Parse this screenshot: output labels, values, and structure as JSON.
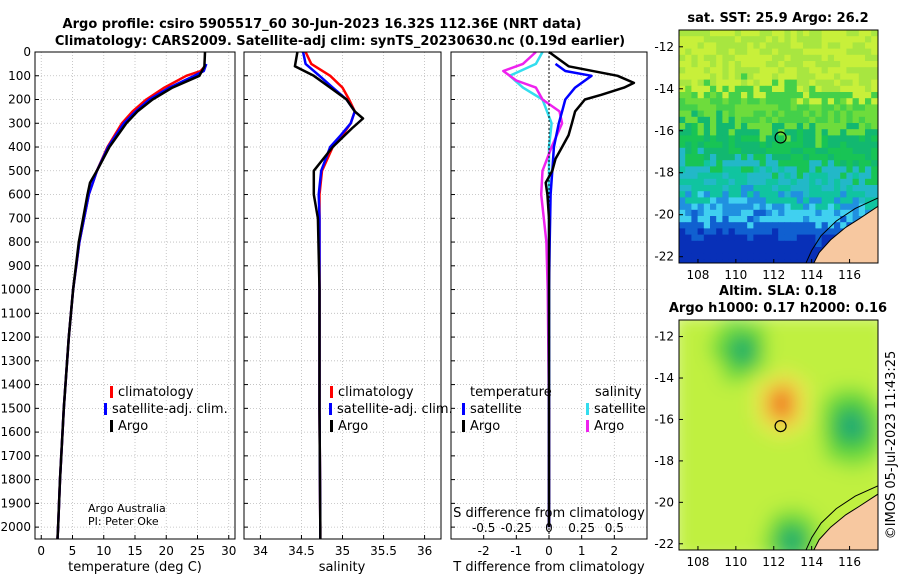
{
  "titles": {
    "line1": "Argo profile: csiro 5905517_60 30-Jun-2023 16.32S 112.36E (NRT data)",
    "line2": "Climatology: CARS2009. Satellite-adj clim: synTS_20230630.nc (0.19d earlier)",
    "sst": "sat. SST: 25.9 Argo: 26.2",
    "sla1": "Altim. SLA: 0.18",
    "sla2": "Argo h1000: 0.17 h2000: 0.16",
    "credit": "©IMOS 05-Jul-2023 11:43:25"
  },
  "colors": {
    "climatology": "#ff0000",
    "satellite": "#0000ff",
    "argo": "#000000",
    "sal_satellite": "#33ddee",
    "sal_argo": "#ee22ee"
  },
  "chart_data": [
    {
      "type": "line",
      "name": "temperature-profile",
      "xlabel": "temperature (deg C)",
      "ylabel": "",
      "xlim": [
        -1,
        31
      ],
      "ylim": [
        2050,
        0
      ],
      "xticks": [
        0,
        5,
        10,
        15,
        20,
        25,
        30
      ],
      "yticks": [
        0,
        100,
        200,
        300,
        400,
        500,
        600,
        700,
        800,
        900,
        1000,
        1100,
        1200,
        1300,
        1400,
        1500,
        1600,
        1700,
        1800,
        1900,
        2000
      ],
      "grid": true,
      "legend": [
        "climatology",
        "satellite-adj. clim.",
        "Argo"
      ],
      "annotation": [
        "Argo Australia",
        "PI: Peter Oke"
      ],
      "series": [
        {
          "name": "climatology",
          "depth": [
            60,
            80,
            100,
            150,
            200,
            250,
            300,
            400,
            500,
            600,
            800,
            1000,
            1200,
            1500,
            1800,
            2000,
            2050
          ],
          "values": [
            26.2,
            25.5,
            23.2,
            19.7,
            16.8,
            14.6,
            12.9,
            10.6,
            8.9,
            7.6,
            6.1,
            5.1,
            4.4,
            3.6,
            3.0,
            2.7,
            2.6
          ]
        },
        {
          "name": "satellite-adj. clim.",
          "depth": [
            50,
            80,
            100,
            150,
            200,
            250,
            300,
            400,
            500,
            600,
            800,
            1000,
            1200,
            1500,
            1800,
            2000,
            2050
          ],
          "values": [
            26.4,
            26.0,
            24.5,
            20.5,
            17.3,
            15.1,
            13.2,
            10.7,
            8.9,
            7.6,
            6.1,
            5.1,
            4.4,
            3.6,
            3.0,
            2.7,
            2.6
          ]
        },
        {
          "name": "Argo",
          "depth": [
            0,
            60,
            100,
            150,
            200,
            250,
            300,
            400,
            500,
            550,
            600,
            800,
            1000,
            1200,
            1500,
            1800,
            2000,
            2050
          ],
          "values": [
            26.2,
            26.1,
            25.3,
            21.0,
            17.8,
            15.4,
            13.6,
            10.9,
            8.9,
            7.8,
            7.4,
            6.0,
            5.1,
            4.4,
            3.6,
            3.0,
            2.7,
            2.6
          ]
        }
      ]
    },
    {
      "type": "line",
      "name": "salinity-profile",
      "xlabel": "salinity",
      "xlim": [
        33.8,
        36.2
      ],
      "ylim": [
        2050,
        0
      ],
      "xticks": [
        34,
        34.5,
        35,
        35.5,
        36
      ],
      "grid": true,
      "legend": [
        "climatology",
        "satellite-adj. clim.",
        "Argo"
      ],
      "series": [
        {
          "name": "climatology",
          "depth": [
            0,
            50,
            100,
            150,
            200,
            250,
            300,
            350,
            400,
            500,
            600,
            700,
            1000,
            1500,
            2000,
            2050
          ],
          "values": [
            34.55,
            34.62,
            34.85,
            35.0,
            35.08,
            35.15,
            35.1,
            35.0,
            34.88,
            34.75,
            34.72,
            34.72,
            34.72,
            34.72,
            34.73,
            34.73
          ]
        },
        {
          "name": "satellite-adj. clim.",
          "depth": [
            0,
            50,
            100,
            150,
            200,
            250,
            300,
            350,
            400,
            500,
            600,
            700,
            1000,
            1500,
            2000,
            2050
          ],
          "values": [
            34.52,
            34.55,
            34.72,
            34.88,
            35.05,
            35.15,
            35.1,
            34.98,
            34.85,
            34.74,
            34.71,
            34.72,
            34.72,
            34.72,
            34.73,
            34.73
          ]
        },
        {
          "name": "Argo",
          "depth": [
            0,
            60,
            100,
            150,
            200,
            250,
            280,
            320,
            400,
            500,
            600,
            700,
            1000,
            1500,
            2000,
            2050
          ],
          "values": [
            34.45,
            34.42,
            34.65,
            34.85,
            35.05,
            35.15,
            35.25,
            35.12,
            34.88,
            34.65,
            34.65,
            34.7,
            34.72,
            34.72,
            34.73,
            34.73
          ]
        }
      ]
    },
    {
      "type": "line",
      "name": "difference-profile",
      "xlabel": "T difference from climatology",
      "xlabel_top": "S difference from climatology",
      "xlim": [
        -3,
        3
      ],
      "ylim": [
        2050,
        0
      ],
      "xticks": [
        -2,
        -1,
        0,
        1,
        2
      ],
      "sticks_labels": [
        "-0.5",
        "-0.25",
        "0",
        "0.25",
        "0.5"
      ],
      "grid": true,
      "legend_temperature": {
        "title": "temperature",
        "items": [
          "satellite",
          "Argo"
        ]
      },
      "legend_salinity": {
        "title": "salinity",
        "items": [
          "satellite",
          "Argo"
        ]
      },
      "series": [
        {
          "name": "T satellite",
          "depth": [
            50,
            80,
            100,
            150,
            200,
            250,
            300,
            400,
            500,
            600,
            800,
            1000,
            1500,
            2000
          ],
          "values": [
            0.2,
            0.5,
            1.3,
            0.8,
            0.5,
            0.4,
            0.3,
            0.15,
            0.1,
            0.05,
            0.02,
            0,
            0,
            0
          ]
        },
        {
          "name": "T Argo",
          "depth": [
            0,
            60,
            100,
            130,
            150,
            180,
            200,
            250,
            300,
            350,
            400,
            450,
            500,
            550,
            600,
            700,
            800,
            1000,
            1500,
            2000
          ],
          "values": [
            0,
            0.6,
            2.1,
            2.6,
            2.3,
            1.6,
            1.1,
            0.8,
            0.7,
            0.6,
            0.4,
            0.2,
            0.1,
            -0.1,
            -0.05,
            0,
            0,
            0,
            0,
            0
          ]
        },
        {
          "name": "S satellite",
          "depth": [
            0,
            50,
            100,
            150,
            200,
            300,
            400,
            600,
            1000,
            2000
          ],
          "values": [
            -0.05,
            -0.1,
            -0.3,
            -0.2,
            -0.05,
            0.02,
            0,
            0,
            0,
            0
          ]
        },
        {
          "name": "S Argo",
          "depth": [
            0,
            50,
            80,
            120,
            150,
            200,
            250,
            300,
            400,
            500,
            600,
            800,
            1000,
            1500,
            2000
          ],
          "values": [
            -0.1,
            -0.2,
            -0.35,
            -0.25,
            -0.1,
            -0.05,
            0.08,
            0.1,
            0.02,
            -0.05,
            -0.06,
            -0.02,
            -0.01,
            0,
            0
          ]
        }
      ]
    },
    {
      "type": "heatmap",
      "name": "sst-map",
      "title": "sat. SST: 25.9 Argo: 26.2",
      "xticks": [
        108,
        110,
        112,
        114,
        116
      ],
      "yticks": [
        -12,
        -14,
        -16,
        -18,
        -20,
        -22
      ],
      "xlim": [
        107,
        117.5
      ],
      "ylim": [
        -22.3,
        -11.2
      ],
      "argo_position": {
        "lon": 112.36,
        "lat": -16.32
      }
    },
    {
      "type": "heatmap",
      "name": "sla-map",
      "title": "Altim. SLA: 0.18",
      "subtitle": "Argo h1000: 0.17 h2000: 0.16",
      "xticks": [
        108,
        110,
        112,
        114,
        116
      ],
      "yticks": [
        -12,
        -14,
        -16,
        -18,
        -20,
        -22
      ],
      "xlim": [
        107,
        117.5
      ],
      "ylim": [
        -22.3,
        -11.2
      ],
      "argo_position": {
        "lon": 112.36,
        "lat": -16.32
      }
    }
  ]
}
